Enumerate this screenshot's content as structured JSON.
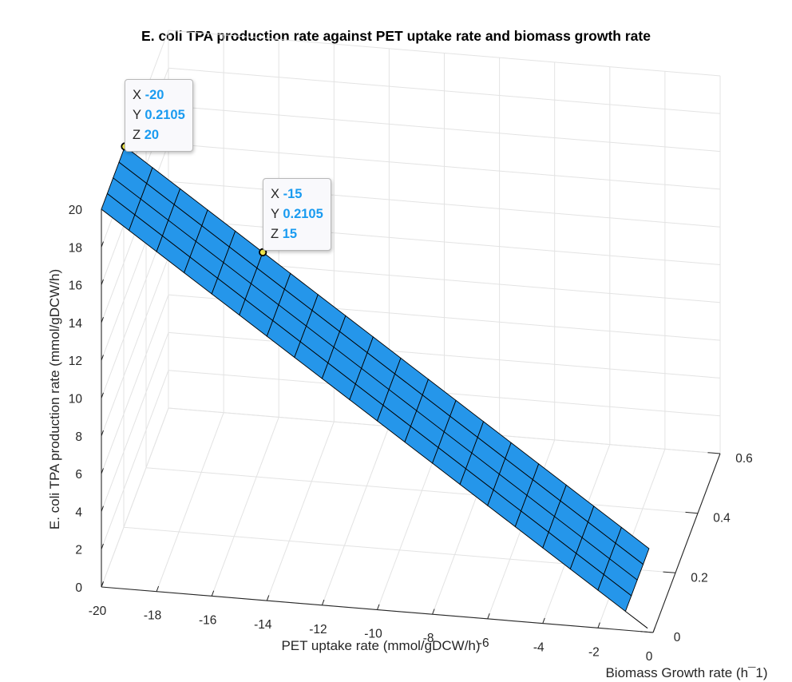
{
  "chart_data": {
    "type": "surface",
    "title": "E. coli TPA production rate against PET uptake rate and biomass growth rate",
    "xlabel": "PET uptake rate (mmol/gDCW/h)",
    "ylabel": "Biomass Growth rate (h¯1)",
    "zlabel": "E. coli TPA production rate (mmol/gDCW/h)",
    "xlim": [
      -20,
      0
    ],
    "ylim": [
      0,
      0.6
    ],
    "zlim": [
      0,
      20
    ],
    "x_ticks": [
      -20,
      -18,
      -16,
      -14,
      -12,
      -10,
      -8,
      -6,
      -4,
      -2,
      0
    ],
    "y_ticks": [
      0,
      0.2,
      0.4,
      0.6
    ],
    "z_ticks": [
      0,
      2,
      4,
      6,
      8,
      10,
      12,
      14,
      16,
      18,
      20
    ],
    "x_tick_labels": [
      "-20",
      "-18",
      "-16",
      "-14",
      "-12",
      "-10",
      "-8",
      "-6",
      "-4",
      "-2",
      "0"
    ],
    "y_tick_labels": [
      "0",
      "0.2",
      "0.4",
      "0.6"
    ],
    "z_tick_labels": [
      "0",
      "2",
      "4",
      "6",
      "8",
      "10",
      "12",
      "14",
      "16",
      "18",
      "20"
    ],
    "grid": true,
    "surface_color": "#2596ea",
    "edge_color": "#000000",
    "relation": "z = -x (constant in y)",
    "surface_x_range": [
      -20,
      -1
    ],
    "surface_y_range": [
      0,
      0.2105
    ],
    "datatips": [
      {
        "x_label": "X",
        "x": "-20",
        "y_label": "Y",
        "y": "0.2105",
        "z_label": "Z",
        "z": "20"
      },
      {
        "x_label": "X",
        "x": "-15",
        "y_label": "Y",
        "y": "0.2105",
        "z_label": "Z",
        "z": "15"
      }
    ]
  }
}
